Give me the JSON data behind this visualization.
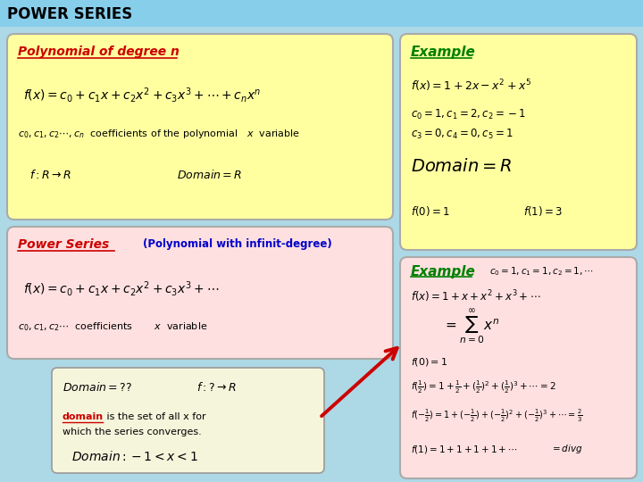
{
  "title": "POWER SERIES",
  "bg_color": "#add8e6",
  "header_bg": "#87ceeb",
  "yellow_bg": "#ffffa0",
  "pink_bg": "#ffe0e0",
  "white_bg": "#ffffff",
  "green_example": "#008000",
  "red_heading": "#cc0000",
  "blue_subtitle": "#0000cc",
  "box1": {
    "label": "Polynomial of degree n"
  },
  "box2": {
    "label": "Example"
  },
  "box3": {
    "label": "Power Series",
    "subtitle": "(Polynomial with infinit-degree)"
  },
  "box4": {
    "text1": "is the set of all x for",
    "text2": "which the series converges."
  },
  "box5": {
    "label": "Example"
  }
}
